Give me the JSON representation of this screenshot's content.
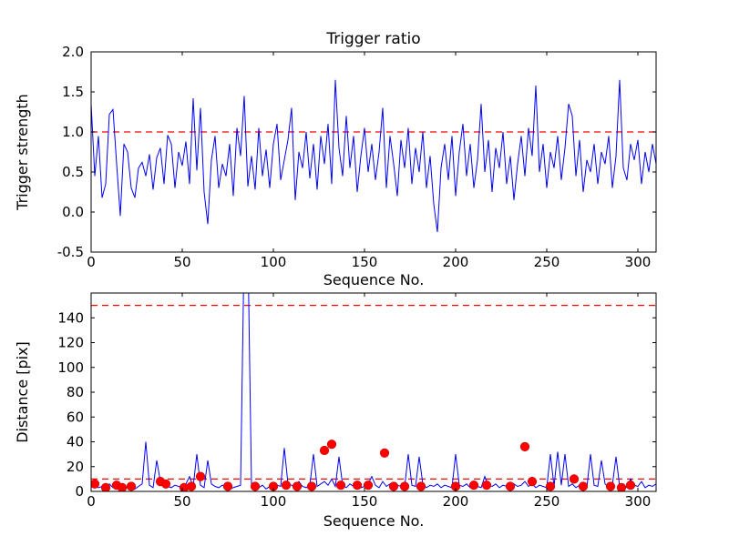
{
  "style": {
    "background": "#ffffff",
    "axes_color": "#000000",
    "line_color": "#0000ff",
    "threshold_color": "#ff0000",
    "marker_color": "#ff0000",
    "marker_edge_color": "#cc0000"
  },
  "chart_data": [
    {
      "type": "line",
      "title": "Trigger ratio",
      "xlabel": "Sequence No.",
      "ylabel": "Trigger strength",
      "xlim": [
        0,
        310
      ],
      "ylim": [
        -0.5,
        2.0
      ],
      "xticks": [
        0,
        50,
        100,
        150,
        200,
        250,
        300
      ],
      "yticks": [
        -0.5,
        0.0,
        0.5,
        1.0,
        1.5,
        2.0
      ],
      "ytick_format": "fixed1",
      "grid": false,
      "thresholds": [
        1.0
      ],
      "x_start": 0,
      "x_step": 2,
      "y": [
        1.35,
        0.45,
        0.95,
        0.18,
        0.35,
        1.22,
        1.28,
        0.6,
        -0.05,
        0.85,
        0.75,
        0.3,
        0.18,
        0.55,
        0.62,
        0.45,
        0.72,
        0.28,
        0.68,
        0.8,
        0.35,
        0.96,
        0.85,
        0.3,
        0.75,
        0.58,
        0.88,
        0.35,
        1.42,
        0.52,
        1.3,
        0.25,
        -0.15,
        0.65,
        0.95,
        0.3,
        0.6,
        0.45,
        0.85,
        0.2,
        1.05,
        0.7,
        1.45,
        0.32,
        0.7,
        0.28,
        1.05,
        0.45,
        0.78,
        0.3,
        0.85,
        1.1,
        0.4,
        0.65,
        0.9,
        1.3,
        0.15,
        0.75,
        0.55,
        1.0,
        0.42,
        0.85,
        0.28,
        0.95,
        0.6,
        1.1,
        0.35,
        1.65,
        0.8,
        0.45,
        1.2,
        0.55,
        0.95,
        0.25,
        0.7,
        1.05,
        0.5,
        0.85,
        0.4,
        0.75,
        1.3,
        0.3,
        0.95,
        0.6,
        0.2,
        0.9,
        0.55,
        1.05,
        0.35,
        0.8,
        0.5,
        1.0,
        0.3,
        0.7,
        0.1,
        -0.25,
        0.55,
        0.85,
        0.4,
        0.95,
        0.2,
        0.75,
        1.1,
        0.45,
        0.85,
        0.3,
        0.65,
        1.35,
        0.5,
        0.9,
        0.25,
        0.8,
        0.55,
        1.0,
        0.35,
        0.7,
        0.15,
        0.6,
        0.95,
        0.45,
        1.05,
        0.7,
        1.58,
        0.5,
        0.85,
        0.3,
        0.75,
        0.55,
        0.95,
        0.4,
        0.8,
        1.35,
        1.2,
        0.45,
        0.9,
        0.25,
        0.65,
        0.5,
        0.85,
        0.35,
        0.75,
        0.6,
        0.95,
        0.3,
        0.7,
        1.65,
        0.55,
        0.4,
        0.85,
        0.65,
        0.9,
        0.35,
        0.75,
        0.5,
        0.85,
        0.6
      ]
    },
    {
      "type": "line+scatter",
      "title": "",
      "xlabel": "Sequence No.",
      "ylabel": "Distance [pix]",
      "xlim": [
        0,
        310
      ],
      "ylim": [
        0,
        160
      ],
      "xticks": [
        0,
        50,
        100,
        150,
        200,
        250,
        300
      ],
      "yticks": [
        0,
        20,
        40,
        60,
        80,
        100,
        120,
        140
      ],
      "ytick_format": "int",
      "grid": false,
      "thresholds": [
        150,
        10
      ],
      "x_start": 0,
      "x_step": 2,
      "y": [
        8,
        5,
        3,
        4,
        2,
        6,
        3,
        5,
        2,
        4,
        3,
        5,
        2,
        4,
        6,
        40,
        5,
        3,
        25,
        8,
        6,
        4,
        3,
        5,
        4,
        3,
        6,
        12,
        4,
        30,
        5,
        3,
        25,
        6,
        4,
        3,
        5,
        4,
        2,
        3,
        4,
        5,
        200,
        200,
        5,
        4,
        3,
        5,
        2,
        4,
        3,
        5,
        4,
        35,
        6,
        5,
        3,
        8,
        4,
        3,
        5,
        30,
        4,
        6,
        8,
        5,
        10,
        4,
        28,
        5,
        3,
        6,
        4,
        5,
        3,
        4,
        6,
        12,
        5,
        3,
        8,
        4,
        6,
        3,
        5,
        4,
        3,
        30,
        5,
        4,
        28,
        6,
        3,
        5,
        4,
        6,
        3,
        5,
        4,
        3,
        30,
        5,
        4,
        6,
        3,
        5,
        4,
        3,
        12,
        5,
        4,
        6,
        3,
        5,
        4,
        3,
        6,
        4,
        5,
        8,
        4,
        6,
        3,
        5,
        4,
        3,
        30,
        4,
        32,
        5,
        30,
        4,
        6,
        3,
        5,
        4,
        3,
        30,
        5,
        4,
        25,
        6,
        3,
        5,
        28,
        4,
        6,
        3,
        10,
        5,
        4,
        8,
        3,
        5,
        4,
        6
      ],
      "scatter": [
        [
          2,
          6
        ],
        [
          8,
          3
        ],
        [
          14,
          5
        ],
        [
          17,
          3
        ],
        [
          22,
          4
        ],
        [
          38,
          8
        ],
        [
          41,
          6
        ],
        [
          51,
          3
        ],
        [
          55,
          4
        ],
        [
          60,
          12
        ],
        [
          75,
          4
        ],
        [
          90,
          4
        ],
        [
          100,
          4
        ],
        [
          107,
          5
        ],
        [
          113,
          4
        ],
        [
          121,
          4
        ],
        [
          128,
          33
        ],
        [
          132,
          38
        ],
        [
          137,
          5
        ],
        [
          146,
          5
        ],
        [
          152,
          5
        ],
        [
          161,
          31
        ],
        [
          166,
          4
        ],
        [
          172,
          4
        ],
        [
          181,
          4
        ],
        [
          200,
          4
        ],
        [
          210,
          5
        ],
        [
          217,
          5
        ],
        [
          230,
          4
        ],
        [
          238,
          36
        ],
        [
          242,
          8
        ],
        [
          252,
          4
        ],
        [
          265,
          10
        ],
        [
          270,
          4
        ],
        [
          285,
          4
        ],
        [
          291,
          3
        ],
        [
          296,
          5
        ]
      ]
    }
  ]
}
